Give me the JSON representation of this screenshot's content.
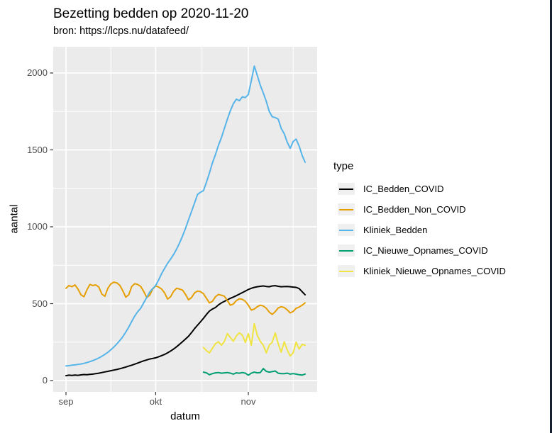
{
  "window": {
    "edge_color": "#17202f"
  },
  "chart_data": {
    "type": "line",
    "title": "Bezetting bedden op 2020-11-20",
    "subtitle": "bron: https://lcps.nu/datafeed/",
    "xlabel": "datum",
    "ylabel": "aantal",
    "legend_title": "type",
    "legend_position": "right",
    "grid": true,
    "x_start_date": "2020-09-01",
    "x_end_date": "2020-11-20",
    "x_tick_labels": [
      "sep",
      "okt",
      "nov"
    ],
    "x_tick_days": [
      0,
      30,
      61
    ],
    "x_minor_days": [
      15,
      45.5,
      76
    ],
    "y_ticks": [
      0,
      500,
      1000,
      1500,
      2000
    ],
    "y_minor": [
      250,
      750,
      1250,
      1750
    ],
    "ylim": [
      0,
      2050
    ],
    "theme": {
      "panel_bg": "#EBEBEB",
      "grid_color": "#FFFFFF",
      "tick_color": "#333333",
      "tick_label_color": "#4D4D4D",
      "legend_key_bg": "#F0F0F0"
    },
    "series": [
      {
        "name": "IC_Bedden_COVID",
        "color": "#000000",
        "start_day": 0,
        "values": [
          32,
          35,
          33,
          36,
          34,
          37,
          39,
          38,
          40,
          42,
          45,
          48,
          52,
          56,
          60,
          64,
          68,
          72,
          77,
          82,
          88,
          94,
          100,
          107,
          114,
          121,
          128,
          134,
          140,
          144,
          148,
          155,
          162,
          170,
          180,
          192,
          205,
          220,
          236,
          253,
          270,
          288,
          312,
          338,
          360,
          382,
          405,
          430,
          452,
          465,
          475,
          492,
          505,
          515,
          525,
          535,
          543,
          552,
          562,
          572,
          582,
          592,
          600,
          606,
          610,
          613,
          615,
          612,
          610,
          615,
          617,
          613,
          610,
          611,
          612,
          610,
          608,
          606,
          598,
          578,
          558
        ]
      },
      {
        "name": "IC_Bedden_Non_COVID",
        "color": "#E69F00",
        "start_day": 0,
        "values": [
          600,
          618,
          610,
          622,
          595,
          558,
          545,
          590,
          625,
          618,
          622,
          608,
          562,
          548,
          600,
          628,
          640,
          635,
          620,
          585,
          542,
          558,
          612,
          630,
          625,
          612,
          580,
          540,
          555,
          595,
          615,
          608,
          595,
          570,
          530,
          545,
          580,
          600,
          595,
          588,
          560,
          525,
          540,
          570,
          582,
          578,
          565,
          535,
          505,
          515,
          545,
          560,
          555,
          548,
          520,
          490,
          498,
          520,
          532,
          528,
          515,
          490,
          458,
          465,
          480,
          490,
          485,
          470,
          445,
          430,
          448,
          472,
          480,
          475,
          460,
          440,
          450,
          470,
          478,
          490,
          505
        ]
      },
      {
        "name": "Kliniek_Bedden",
        "color": "#56B4E9",
        "start_day": 0,
        "values": [
          95,
          97,
          100,
          102,
          105,
          108,
          112,
          117,
          123,
          130,
          138,
          147,
          158,
          170,
          184,
          200,
          218,
          238,
          260,
          285,
          315,
          348,
          385,
          420,
          448,
          470,
          505,
          540,
          575,
          598,
          618,
          655,
          695,
          730,
          762,
          790,
          820,
          855,
          895,
          940,
          990,
          1045,
          1100,
          1155,
          1210,
          1225,
          1235,
          1290,
          1350,
          1415,
          1470,
          1530,
          1580,
          1640,
          1700,
          1755,
          1800,
          1830,
          1820,
          1845,
          1840,
          1860,
          1950,
          2045,
          1985,
          1920,
          1870,
          1815,
          1750,
          1715,
          1710,
          1700,
          1640,
          1605,
          1550,
          1510,
          1555,
          1570,
          1525,
          1465,
          1420
        ]
      },
      {
        "name": "IC_Nieuwe_Opnames_COVID",
        "color": "#009E73",
        "start_day": 46,
        "values": [
          55,
          50,
          38,
          45,
          50,
          52,
          48,
          50,
          52,
          48,
          42,
          50,
          48,
          52,
          48,
          35,
          48,
          55,
          50,
          52,
          78,
          60,
          55,
          58,
          62,
          48,
          45,
          45,
          48,
          42,
          45,
          42,
          38,
          36,
          42
        ]
      },
      {
        "name": "Kliniek_Nieuwe_Opnames_COVID",
        "color": "#F0E442",
        "start_day": 46,
        "values": [
          215,
          195,
          180,
          210,
          240,
          252,
          230,
          255,
          305,
          280,
          255,
          290,
          310,
          295,
          248,
          305,
          230,
          370,
          295,
          255,
          230,
          180,
          230,
          250,
          310,
          240,
          185,
          252,
          200,
          160,
          180,
          250,
          205,
          235,
          230
        ]
      }
    ]
  }
}
